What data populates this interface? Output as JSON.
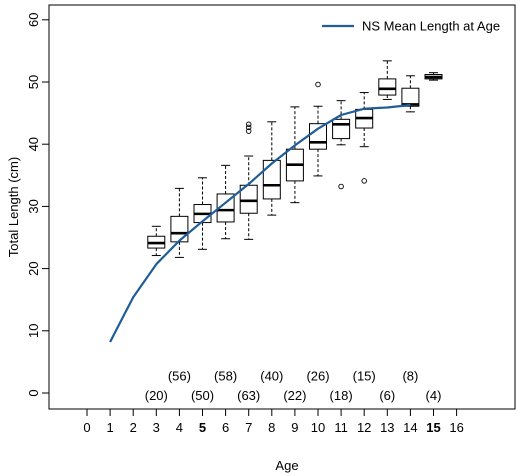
{
  "chart_data": {
    "type": "boxplot+line",
    "xlabel": "Age",
    "ylabel": "Total Length (cm)",
    "xlim": [
      -1,
      17
    ],
    "ylim": [
      -2,
      60
    ],
    "x_ticks": [
      0,
      1,
      2,
      3,
      4,
      5,
      6,
      7,
      8,
      9,
      10,
      11,
      12,
      13,
      14,
      15,
      16
    ],
    "x_ticks_bold": [
      5,
      15
    ],
    "y_ticks": [
      0,
      10,
      20,
      30,
      40,
      50,
      60
    ],
    "legend": {
      "placement": "top-right",
      "label": "NS Mean Length at Age",
      "color": "#1f5d99"
    },
    "line_color": "#1f5d99",
    "mean_length_line": {
      "name": "NS Mean Length at Age",
      "x": [
        1,
        2,
        3,
        4,
        5,
        6,
        7,
        8,
        9,
        10,
        11,
        12,
        13,
        14
      ],
      "y": [
        8.2,
        15.4,
        20.7,
        24.5,
        27.6,
        30.6,
        33.6,
        36.9,
        39.8,
        42.5,
        44.7,
        45.7,
        45.9,
        46.3
      ]
    },
    "boxes": [
      {
        "age": 3,
        "min": 22.1,
        "q1": 23.3,
        "median": 24.1,
        "q3": 25.2,
        "max": 26.8,
        "outliers": []
      },
      {
        "age": 4,
        "min": 21.8,
        "q1": 24.3,
        "median": 25.7,
        "q3": 28.4,
        "max": 32.9,
        "outliers": []
      },
      {
        "age": 5,
        "min": 23.1,
        "q1": 27.4,
        "median": 28.8,
        "q3": 30.3,
        "max": 34.6,
        "outliers": []
      },
      {
        "age": 6,
        "min": 24.8,
        "q1": 27.5,
        "median": 29.4,
        "q3": 32.0,
        "max": 36.6,
        "outliers": []
      },
      {
        "age": 7,
        "min": 24.7,
        "q1": 28.9,
        "median": 30.9,
        "q3": 33.4,
        "max": 38.1,
        "outliers": [
          42.1,
          42.7,
          43.2
        ]
      },
      {
        "age": 8,
        "min": 28.6,
        "q1": 31.2,
        "median": 33.4,
        "q3": 37.4,
        "max": 43.6,
        "outliers": []
      },
      {
        "age": 9,
        "min": 30.6,
        "q1": 34.1,
        "median": 36.7,
        "q3": 39.2,
        "max": 46.0,
        "outliers": []
      },
      {
        "age": 10,
        "min": 34.9,
        "q1": 39.2,
        "median": 40.3,
        "q3": 43.3,
        "max": 46.1,
        "outliers": [
          49.6
        ]
      },
      {
        "age": 11,
        "min": 39.9,
        "q1": 40.9,
        "median": 43.2,
        "q3": 44.0,
        "max": 47.0,
        "outliers": [
          33.2
        ]
      },
      {
        "age": 12,
        "min": 39.6,
        "q1": 42.6,
        "median": 44.2,
        "q3": 45.6,
        "max": 48.3,
        "outliers": [
          34.1
        ]
      },
      {
        "age": 13,
        "min": 47.2,
        "q1": 47.9,
        "median": 48.9,
        "q3": 50.5,
        "max": 53.4,
        "outliers": []
      },
      {
        "age": 14,
        "min": 45.2,
        "q1": 46.1,
        "median": 46.4,
        "q3": 49.0,
        "max": 51.0,
        "outliers": []
      },
      {
        "age": 15,
        "min": 50.3,
        "q1": 50.5,
        "median": 50.8,
        "q3": 51.2,
        "max": 51.5,
        "outliers": []
      }
    ],
    "sample_sizes": [
      {
        "age": 3,
        "label": "(20)",
        "row": "lower"
      },
      {
        "age": 4,
        "label": "(56)",
        "row": "upper"
      },
      {
        "age": 5,
        "label": "(50)",
        "row": "lower"
      },
      {
        "age": 6,
        "label": "(58)",
        "row": "upper"
      },
      {
        "age": 7,
        "label": "(63)",
        "row": "lower"
      },
      {
        "age": 8,
        "label": "(40)",
        "row": "upper"
      },
      {
        "age": 9,
        "label": "(22)",
        "row": "lower"
      },
      {
        "age": 10,
        "label": "(26)",
        "row": "upper"
      },
      {
        "age": 11,
        "label": "(18)",
        "row": "lower"
      },
      {
        "age": 12,
        "label": "(15)",
        "row": "upper"
      },
      {
        "age": 13,
        "label": "(6)",
        "row": "lower"
      },
      {
        "age": 14,
        "label": "(8)",
        "row": "upper"
      },
      {
        "age": 15,
        "label": "(4)",
        "row": "lower"
      }
    ],
    "count_rows": {
      "upper": 2.7,
      "lower": -0.4
    }
  }
}
